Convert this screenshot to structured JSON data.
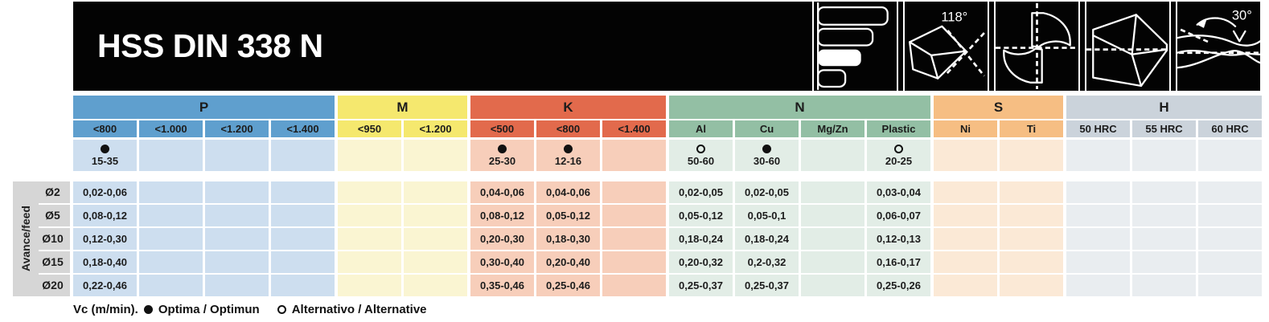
{
  "header": {
    "title": "HSS DIN 338 N",
    "icons": [
      {
        "name": "size-range-chart",
        "label": ""
      },
      {
        "name": "point-angle",
        "label": "118°"
      },
      {
        "name": "flute-cross-section",
        "label": ""
      },
      {
        "name": "drill-point",
        "label": ""
      },
      {
        "name": "helix-angle",
        "label": "30°"
      }
    ]
  },
  "table": {
    "row_axis_label": "Avance/feed",
    "groups": [
      {
        "label": "P",
        "color": "#5f9fce",
        "light": "#cddeef",
        "columns": [
          "<800",
          "<1.000",
          "<1.200",
          "<1.400"
        ]
      },
      {
        "label": "M",
        "color": "#f5e86e",
        "light": "#faf5d2",
        "columns": [
          "<950",
          "<1.200"
        ]
      },
      {
        "label": "K",
        "color": "#e26a4c",
        "light": "#f7ceba",
        "columns": [
          "<500",
          "<800",
          "<1.400"
        ]
      },
      {
        "label": "N",
        "color": "#93bfa4",
        "light": "#e2ede6",
        "columns": [
          "Al",
          "Cu",
          "Mg/Zn",
          "Plastic"
        ]
      },
      {
        "label": "S",
        "color": "#f6be83",
        "light": "#fbe9d6",
        "columns": [
          "Ni",
          "Ti"
        ]
      },
      {
        "label": "H",
        "color": "#cbd3db",
        "light": "#e9edf0",
        "columns": [
          "50 HRC",
          "55 HRC",
          "60 HRC"
        ]
      }
    ],
    "vc": [
      [
        {
          "marker": "optima",
          "value": "15-35"
        },
        null,
        null,
        null
      ],
      [
        null,
        null
      ],
      [
        {
          "marker": "optima",
          "value": "25-30"
        },
        {
          "marker": "optima",
          "value": "12-16"
        },
        null
      ],
      [
        {
          "marker": "alt",
          "value": "50-60"
        },
        {
          "marker": "optima",
          "value": "30-60"
        },
        null,
        {
          "marker": "alt",
          "value": "20-25"
        }
      ],
      [
        null,
        null
      ],
      [
        null,
        null,
        null
      ]
    ],
    "rows": [
      {
        "dia": "Ø2",
        "values": [
          [
            "0,02-0,06",
            "",
            "",
            ""
          ],
          [
            "",
            ""
          ],
          [
            "0,04-0,06",
            "0,04-0,06",
            ""
          ],
          [
            "0,02-0,05",
            "0,02-0,05",
            "",
            "0,03-0,04"
          ],
          [
            "",
            ""
          ],
          [
            "",
            "",
            ""
          ]
        ]
      },
      {
        "dia": "Ø5",
        "values": [
          [
            "0,08-0,12",
            "",
            "",
            ""
          ],
          [
            "",
            ""
          ],
          [
            "0,08-0,12",
            "0,05-0,12",
            ""
          ],
          [
            "0,05-0,12",
            "0,05-0,1",
            "",
            "0,06-0,07"
          ],
          [
            "",
            ""
          ],
          [
            "",
            "",
            ""
          ]
        ]
      },
      {
        "dia": "Ø10",
        "values": [
          [
            "0,12-0,30",
            "",
            "",
            ""
          ],
          [
            "",
            ""
          ],
          [
            "0,20-0,30",
            "0,18-0,30",
            ""
          ],
          [
            "0,18-0,24",
            "0,18-0,24",
            "",
            "0,12-0,13"
          ],
          [
            "",
            ""
          ],
          [
            "",
            "",
            ""
          ]
        ]
      },
      {
        "dia": "Ø15",
        "values": [
          [
            "0,18-0,40",
            "",
            "",
            ""
          ],
          [
            "",
            ""
          ],
          [
            "0,30-0,40",
            "0,20-0,40",
            ""
          ],
          [
            "0,20-0,32",
            "0,2-0,32",
            "",
            "0,16-0,17"
          ],
          [
            "",
            ""
          ],
          [
            "",
            "",
            ""
          ]
        ]
      },
      {
        "dia": "Ø20",
        "values": [
          [
            "0,22-0,46",
            "",
            "",
            ""
          ],
          [
            "",
            ""
          ],
          [
            "0,35-0,46",
            "0,25-0,46",
            ""
          ],
          [
            "0,25-0,37",
            "0,25-0,37",
            "",
            "0,25-0,26"
          ],
          [
            "",
            ""
          ],
          [
            "",
            "",
            ""
          ]
        ]
      }
    ]
  },
  "footer": {
    "vc_label": "Vc (m/min).",
    "optima": "Optima / Optimun",
    "alternative": "Alternativo / Alternative"
  }
}
